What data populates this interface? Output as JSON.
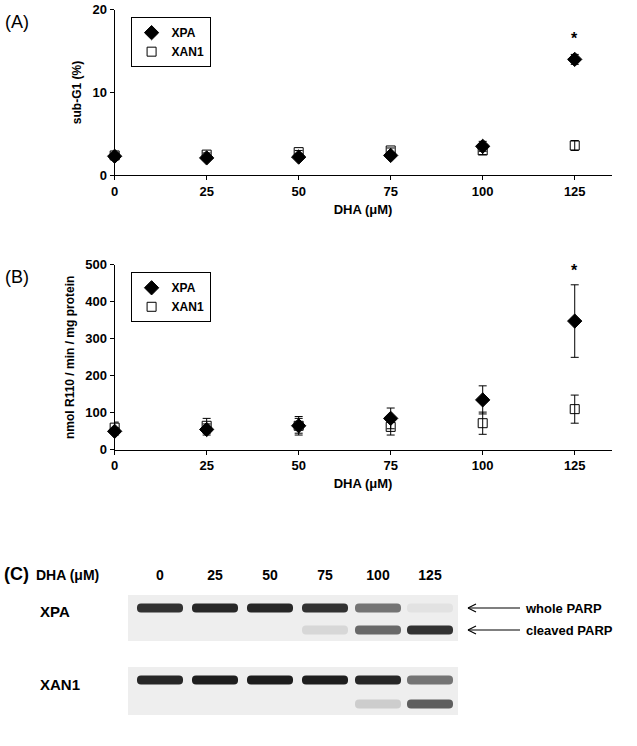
{
  "chart_data": [
    {
      "type": "scatter",
      "x_label": "DHA (μM)",
      "y_label": "sub-G1 (%)",
      "x": [
        0,
        25,
        50,
        75,
        100,
        125
      ],
      "series": [
        {
          "name": "XPA",
          "color": "#000000",
          "marker": "diamond",
          "values": [
            2.3,
            2.1,
            2.2,
            2.4,
            3.5,
            14.0
          ],
          "errors": [
            0.3,
            0.2,
            0.2,
            0.3,
            0.6,
            0.6
          ]
        },
        {
          "name": "XAN1",
          "color": "#000000",
          "marker": "square-open",
          "values": [
            2.4,
            2.5,
            2.8,
            3.0,
            3.0,
            3.6
          ],
          "errors": [
            0.3,
            0.2,
            0.2,
            0.3,
            0.5,
            0.6
          ]
        }
      ],
      "xlim": [
        0,
        135
      ],
      "xticks": [
        0,
        25,
        50,
        75,
        100,
        125
      ],
      "ylim": [
        0,
        20
      ],
      "yticks": [
        0,
        10,
        20
      ],
      "grid": false,
      "legend": "upper left",
      "annotations": [
        {
          "text": "(A)"
        },
        {
          "text": "*",
          "x": 125,
          "y": 15.2
        }
      ]
    },
    {
      "type": "scatter",
      "x_label": "DHA (μM)",
      "y_label": "nmol R110 / min / mg protein",
      "x": [
        0,
        25,
        50,
        75,
        100,
        125
      ],
      "series": [
        {
          "name": "XPA",
          "color": "#000000",
          "marker": "diamond",
          "values": [
            50,
            55,
            65,
            85,
            135,
            348
          ],
          "errors": [
            10,
            15,
            20,
            28,
            38,
            98
          ]
        },
        {
          "name": "XAN1",
          "color": "#000000",
          "marker": "square-open",
          "values": [
            60,
            65,
            65,
            62,
            72,
            110
          ],
          "errors": [
            15,
            20,
            25,
            22,
            30,
            38
          ]
        }
      ],
      "xlim": [
        0,
        135
      ],
      "xticks": [
        0,
        25,
        50,
        75,
        100,
        125
      ],
      "ylim": [
        0,
        500
      ],
      "yticks": [
        0,
        100,
        200,
        300,
        400,
        500
      ],
      "grid": false,
      "legend": "upper left",
      "annotations": [
        {
          "text": "(B)"
        },
        {
          "text": "*",
          "x": 125,
          "y": 455
        }
      ]
    }
  ],
  "blot": {
    "panel": "(C)",
    "x_label": "DHA (μM)",
    "lanes": [
      0,
      25,
      50,
      75,
      100,
      125
    ],
    "band_labels": {
      "whole": "whole PARP",
      "cleaved": "cleaved PARP"
    },
    "rows": [
      {
        "name": "XPA",
        "whole": [
          0.85,
          0.9,
          0.9,
          0.85,
          0.55,
          0.05
        ],
        "cleaved": [
          0,
          0,
          0,
          0.1,
          0.6,
          0.85
        ]
      },
      {
        "name": "XAN1",
        "whole": [
          0.9,
          0.95,
          0.95,
          0.95,
          0.9,
          0.55
        ],
        "cleaved": [
          0,
          0,
          0,
          0,
          0.15,
          0.65
        ]
      }
    ]
  }
}
